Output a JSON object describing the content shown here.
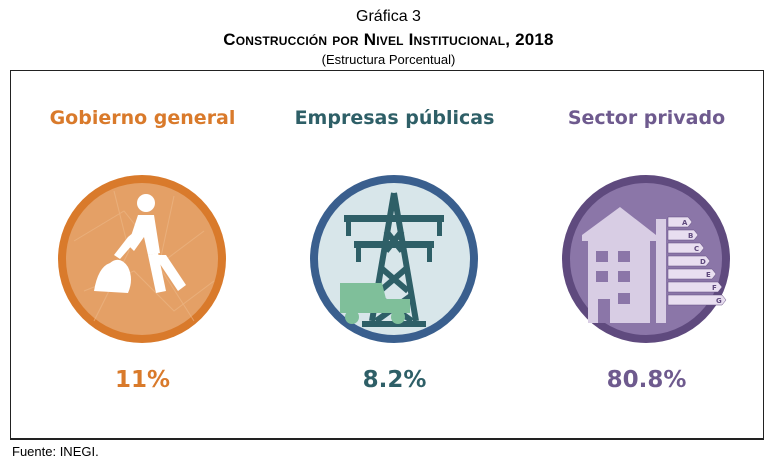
{
  "header": {
    "label": "Gráfica 3",
    "title": "Construcción por Nivel Institucional, 2018",
    "subtitle": "(Estructura Porcentual)"
  },
  "chart_data": {
    "type": "table",
    "unit": "%",
    "categories": [
      "Gobierno general",
      "Empresas públicas",
      "Sector privado"
    ],
    "values": [
      11,
      8.2,
      80.8
    ],
    "value_labels": [
      "11%",
      "8.2%",
      "80.8%"
    ],
    "colors": [
      "#d97a2b",
      "#2e5f67",
      "#6e5a8e"
    ],
    "icons": [
      "worker-icon",
      "power-tower-icon",
      "building-energy-icon"
    ]
  },
  "energy_labels": [
    "A",
    "B",
    "C",
    "D",
    "E",
    "F",
    "G"
  ],
  "footer": {
    "source": "Fuente: INEGI."
  }
}
